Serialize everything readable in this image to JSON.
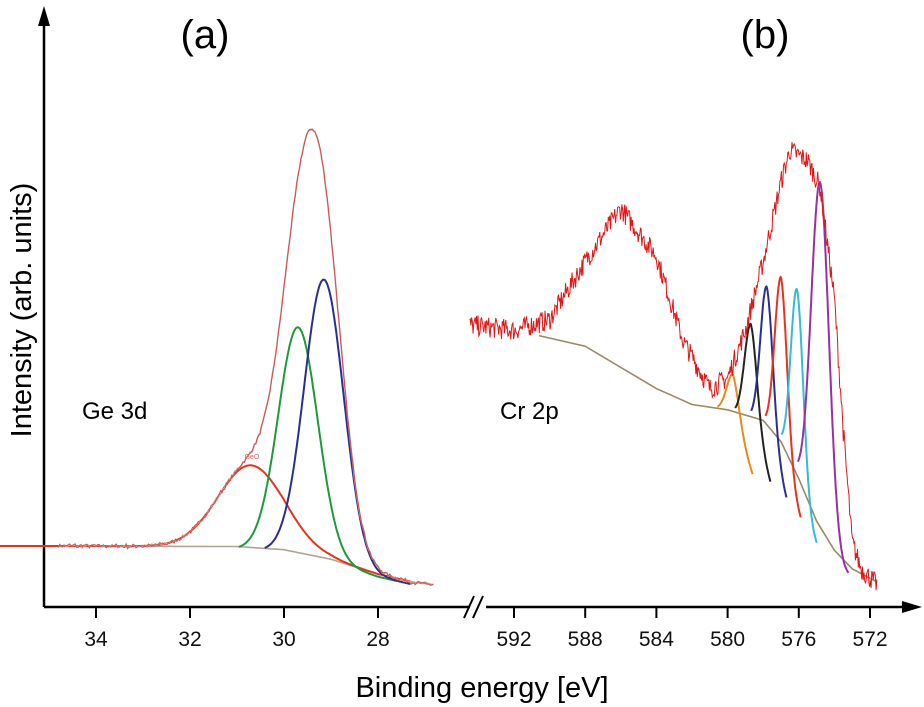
{
  "chart_data": [
    {
      "type": "line",
      "panel_label": "(a)",
      "annotation": "Ge 3d",
      "peak_label": "GeO",
      "x_ticks": [
        34,
        32,
        30,
        28
      ],
      "xlim": [
        34.8,
        26.6
      ],
      "x_reversed": true,
      "ylim": [
        0,
        105
      ],
      "background": [
        [
          34.8,
          8.3
        ],
        [
          31,
          8.2
        ],
        [
          30,
          7.6
        ],
        [
          29,
          5.8
        ],
        [
          28,
          3
        ],
        [
          27.2,
          1.4
        ],
        [
          26.8,
          1
        ]
      ],
      "peaks": [
        {
          "name": "GeO",
          "center": 30.7,
          "amplitude": 15.5,
          "sigma": 0.7,
          "color": "#e8321e"
        },
        {
          "center": 29.7,
          "amplitude": 43,
          "sigma": 0.42,
          "color": "#1d9a3a"
        },
        {
          "center": 29.15,
          "amplitude": 53,
          "sigma": 0.42,
          "color": "#2a2e93"
        }
      ],
      "envelope_colors": [
        "#d9433a",
        "#c0a0a0"
      ]
    },
    {
      "type": "line",
      "panel_label": "(b)",
      "annotation": "Cr 2p",
      "x_ticks": [
        592,
        588,
        584,
        580,
        576,
        572
      ],
      "xlim": [
        594.5,
        571.2
      ],
      "x_reversed": true,
      "ylim": [
        0,
        105
      ],
      "envelope": [
        [
          594.5,
          50
        ],
        [
          592,
          49
        ],
        [
          590,
          51
        ],
        [
          588,
          62
        ],
        [
          586,
          72
        ],
        [
          584,
          63
        ],
        [
          582.5,
          47
        ],
        [
          581,
          38
        ],
        [
          580,
          40
        ],
        [
          579,
          49
        ],
        [
          578,
          62
        ],
        [
          577,
          77
        ],
        [
          576.5,
          83
        ],
        [
          575.5,
          81
        ],
        [
          574.8,
          76
        ],
        [
          574,
          55
        ],
        [
          573.5,
          30
        ],
        [
          573,
          9
        ],
        [
          572.5,
          4
        ],
        [
          571.6,
          1
        ]
      ],
      "background": [
        [
          590.6,
          48
        ],
        [
          588,
          46
        ],
        [
          586,
          42
        ],
        [
          584,
          38
        ],
        [
          582,
          35
        ],
        [
          580,
          34
        ],
        [
          578,
          32
        ],
        [
          577,
          28
        ],
        [
          576,
          21
        ],
        [
          575,
          13
        ],
        [
          574,
          7.5
        ],
        [
          573,
          4
        ],
        [
          571.6,
          1.5
        ]
      ],
      "peaks": [
        {
          "center": 579.7,
          "amplitude": 7,
          "sigma": 0.35,
          "color": "#e68a1a"
        },
        {
          "center": 578.7,
          "amplitude": 17.5,
          "sigma": 0.35,
          "color": "#222222"
        },
        {
          "center": 577.8,
          "amplitude": 26,
          "sigma": 0.35,
          "color": "#2a2e93"
        },
        {
          "center": 577.0,
          "amplitude": 31,
          "sigma": 0.35,
          "color": "#e8321e"
        },
        {
          "center": 576.1,
          "amplitude": 35,
          "sigma": 0.35,
          "color": "#33bcd6"
        },
        {
          "center": 574.8,
          "amplitude": 65,
          "sigma": 0.5,
          "color": "#9a2fa0"
        }
      ],
      "envelope_color": "#e01818",
      "background_color": "#9a8a66"
    }
  ],
  "xlabel": "Binding energy [eV]",
  "ylabel": "Intensity (arb. units)"
}
